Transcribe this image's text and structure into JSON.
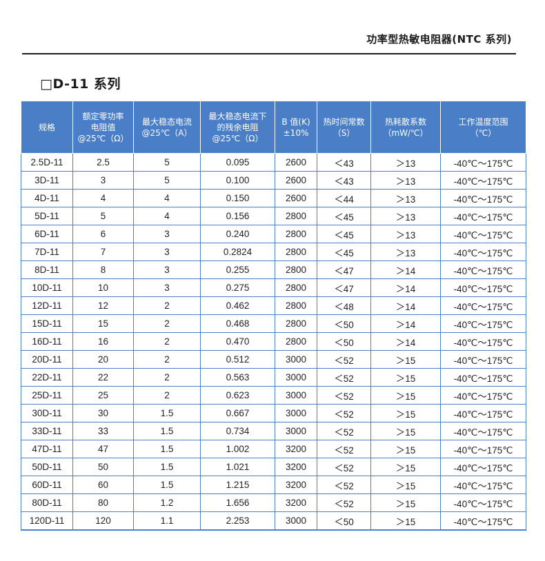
{
  "header": {
    "title": "功率型热敏电阻器(NTC 系列)"
  },
  "section": {
    "title": "□D-11  系列"
  },
  "table": {
    "headers": [
      [
        "规格"
      ],
      [
        "额定零功率",
        "电阻值",
        "@25℃（Ω）"
      ],
      [
        "最大稳态电流",
        "@25℃（A）"
      ],
      [
        "最大稳态电流下",
        "的残余电阻",
        "@25℃（Ω）"
      ],
      [
        "B 值(K)",
        "±10%"
      ],
      [
        "热时间常数",
        "（S）"
      ],
      [
        "热耗散系数",
        "（mW/℃）"
      ],
      [
        "工作温度范围",
        "（℃）"
      ]
    ],
    "rows": [
      [
        "2.5D-11",
        "2.5",
        "5",
        "0.095",
        "2600",
        "＜43",
        "＞13",
        "-40℃～175℃"
      ],
      [
        "3D-11",
        "3",
        "5",
        "0.100",
        "2600",
        "＜43",
        "＞13",
        "-40℃～175℃"
      ],
      [
        "4D-11",
        "4",
        "4",
        "0.150",
        "2600",
        "＜44",
        "＞13",
        "-40℃～175℃"
      ],
      [
        "5D-11",
        "5",
        "4",
        "0.156",
        "2800",
        "＜45",
        "＞13",
        "-40℃～175℃"
      ],
      [
        "6D-11",
        "6",
        "3",
        "0.240",
        "2800",
        "＜45",
        "＞13",
        "-40℃～175℃"
      ],
      [
        "7D-11",
        "7",
        "3",
        "0.2824",
        "2800",
        "＜45",
        "＞13",
        "-40℃～175℃"
      ],
      [
        "8D-11",
        "8",
        "3",
        "0.255",
        "2800",
        "＜47",
        "＞14",
        "-40℃～175℃"
      ],
      [
        "10D-11",
        "10",
        "3",
        "0.275",
        "2800",
        "＜47",
        "＞14",
        "-40℃～175℃"
      ],
      [
        "12D-11",
        "12",
        "2",
        "0.462",
        "2800",
        "＜48",
        "＞14",
        "-40℃～175℃"
      ],
      [
        "15D-11",
        "15",
        "2",
        "0.468",
        "2800",
        "＜50",
        "＞14",
        "-40℃～175℃"
      ],
      [
        "16D-11",
        "16",
        "2",
        "0.470",
        "2800",
        "＜50",
        "＞14",
        "-40℃～175℃"
      ],
      [
        "20D-11",
        "20",
        "2",
        "0.512",
        "3000",
        "＜52",
        "＞15",
        "-40℃～175℃"
      ],
      [
        "22D-11",
        "22",
        "2",
        "0.563",
        "3000",
        "＜52",
        "＞15",
        "-40℃～175℃"
      ],
      [
        "25D-11",
        "25",
        "2",
        "0.623",
        "3000",
        "＜52",
        "＞15",
        "-40℃～175℃"
      ],
      [
        "30D-11",
        "30",
        "1.5",
        "0.667",
        "3000",
        "＜52",
        "＞15",
        "-40℃～175℃"
      ],
      [
        "33D-11",
        "33",
        "1.5",
        "0.734",
        "3000",
        "＜52",
        "＞15",
        "-40℃～175℃"
      ],
      [
        "47D-11",
        "47",
        "1.5",
        "1.002",
        "3200",
        "＜52",
        "＞15",
        "-40℃～175℃"
      ],
      [
        "50D-11",
        "50",
        "1.5",
        "1.021",
        "3200",
        "＜52",
        "＞15",
        "-40℃～175℃"
      ],
      [
        "60D-11",
        "60",
        "1.5",
        "1.215",
        "3200",
        "＜52",
        "＞15",
        "-40℃～175℃"
      ],
      [
        "80D-11",
        "80",
        "1.2",
        "1.656",
        "3200",
        "＜52",
        "＞15",
        "-40℃～175℃"
      ],
      [
        "120D-11",
        "120",
        "1.1",
        "2.253",
        "3000",
        "＜50",
        "＞15",
        "-40℃～175℃"
      ]
    ]
  }
}
